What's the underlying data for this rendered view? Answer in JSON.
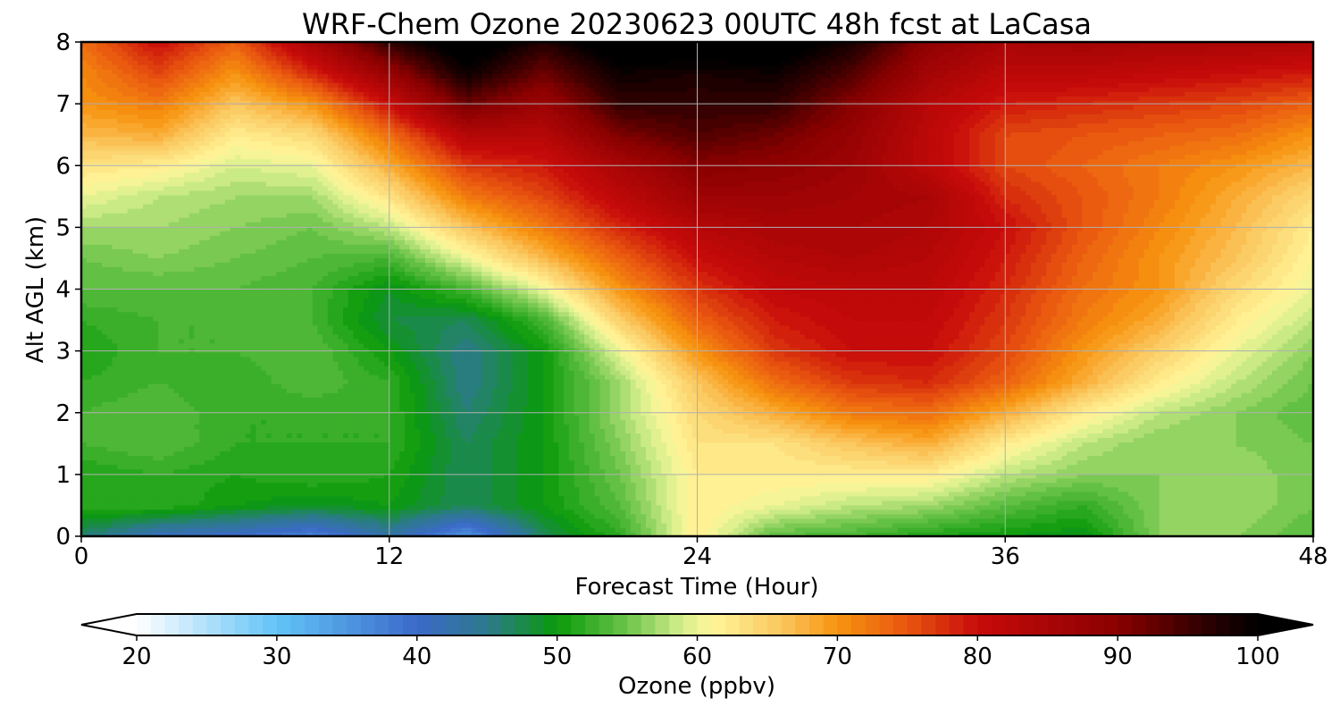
{
  "chart_data": {
    "type": "heatmap",
    "title": "WRF-Chem Ozone  20230623 00UTC 48h fcst at LaCasa",
    "xlabel": "Forecast Time (Hour)",
    "ylabel": "Alt AGL (km)",
    "xlim": [
      0,
      48
    ],
    "ylim": [
      0,
      8
    ],
    "x_ticks": [
      0,
      12,
      24,
      36,
      48
    ],
    "y_ticks": [
      0,
      1,
      2,
      3,
      4,
      5,
      6,
      7,
      8
    ],
    "grid": true,
    "x": [
      0,
      3,
      6,
      9,
      12,
      15,
      18,
      21,
      24,
      27,
      30,
      33,
      36,
      39,
      42,
      45,
      48
    ],
    "y": [
      0,
      0.5,
      1,
      1.5,
      2,
      2.5,
      3,
      3.5,
      4,
      4.5,
      5,
      5.5,
      6,
      6.5,
      7,
      7.5,
      8
    ],
    "z": [
      [
        46,
        41,
        40,
        37,
        43,
        35,
        47,
        52,
        62,
        54,
        53,
        51,
        50,
        49,
        56,
        56,
        54
      ],
      [
        52,
        52,
        50,
        49,
        50,
        47,
        50,
        54,
        62,
        60,
        58,
        57,
        54,
        52,
        56,
        57,
        55
      ],
      [
        51,
        52,
        51,
        52,
        51,
        47,
        50,
        55,
        62,
        62,
        62,
        62,
        58,
        56,
        56,
        57,
        55
      ],
      [
        53,
        54,
        52,
        52,
        52,
        47,
        50,
        56,
        63,
        63,
        66,
        68,
        62,
        58,
        56,
        56,
        55
      ],
      [
        53,
        54,
        52,
        52,
        52,
        46,
        50,
        57,
        64,
        68,
        72,
        73,
        68,
        62,
        58,
        56,
        54
      ],
      [
        52,
        53,
        52,
        54,
        52,
        45,
        50,
        57,
        66,
        73,
        77,
        78,
        74,
        68,
        62,
        58,
        55
      ],
      [
        51,
        53,
        53,
        54,
        50,
        45,
        50,
        60,
        70,
        77,
        80,
        80,
        76,
        70,
        65,
        60,
        56
      ],
      [
        52,
        53,
        53,
        53,
        48,
        47,
        53,
        65,
        74,
        79,
        81,
        81,
        77,
        72,
        68,
        62,
        58
      ],
      [
        54,
        54,
        54,
        53,
        49,
        53,
        60,
        70,
        77,
        81,
        82,
        82,
        78,
        73,
        70,
        64,
        60
      ],
      [
        55,
        56,
        55,
        54,
        53,
        60,
        67,
        74,
        80,
        83,
        84,
        83,
        79,
        74,
        70,
        66,
        61
      ],
      [
        57,
        57,
        56,
        55,
        58,
        66,
        72,
        78,
        83,
        85,
        85,
        84,
        80,
        75,
        71,
        67,
        62
      ],
      [
        60,
        58,
        57,
        57,
        63,
        72,
        76,
        82,
        87,
        87,
        86,
        85,
        78,
        75,
        72,
        68,
        64
      ],
      [
        63,
        62,
        59,
        60,
        68,
        77,
        79,
        85,
        90,
        89,
        87,
        82,
        76,
        74,
        72,
        70,
        67
      ],
      [
        67,
        68,
        62,
        64,
        73,
        83,
        83,
        91,
        94,
        92,
        88,
        82,
        76,
        75,
        74,
        73,
        70
      ],
      [
        70,
        72,
        66,
        70,
        80,
        92,
        87,
        96,
        96,
        96,
        90,
        83,
        79,
        78,
        77,
        76,
        74
      ],
      [
        71,
        76,
        70,
        78,
        88,
        99,
        92,
        99,
        98,
        99,
        94,
        86,
        82,
        82,
        81,
        80,
        79
      ],
      [
        73,
        80,
        74,
        85,
        96,
        103,
        97,
        103,
        103,
        103,
        98,
        89,
        85,
        86,
        85,
        85,
        84
      ]
    ],
    "colorbar": {
      "label": "Ozone  (ppbv)",
      "min": 20,
      "max": 100,
      "ticks": [
        20,
        30,
        40,
        50,
        60,
        70,
        80,
        90,
        100
      ],
      "extend": "both",
      "stops": [
        [
          20,
          "#ffffff"
        ],
        [
          30,
          "#62c3f7"
        ],
        [
          40,
          "#3b69c9"
        ],
        [
          45,
          "#2c7a8c"
        ],
        [
          50,
          "#0a9a0a"
        ],
        [
          55,
          "#6cc44a"
        ],
        [
          59,
          "#d7ef8d"
        ],
        [
          61,
          "#fff69a"
        ],
        [
          66,
          "#fbc65e"
        ],
        [
          70,
          "#f7940f"
        ],
        [
          75,
          "#e85510"
        ],
        [
          80,
          "#c80a0a"
        ],
        [
          90,
          "#8a0000"
        ],
        [
          96,
          "#300000"
        ],
        [
          100,
          "#000000"
        ]
      ]
    }
  }
}
